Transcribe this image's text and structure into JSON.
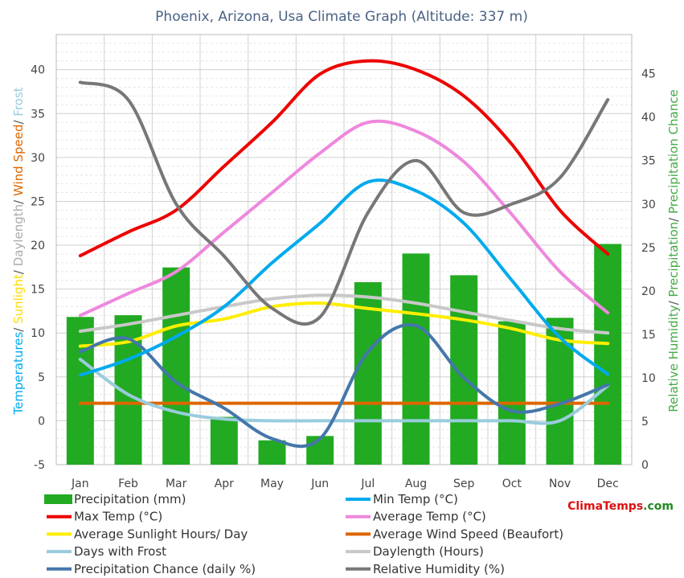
{
  "chart_data": {
    "type": "bar",
    "title": "Phoenix, Arizona, Usa Climate Graph (Altitude: 337 m)",
    "categories": [
      "Jan",
      "Feb",
      "Mar",
      "Apr",
      "May",
      "Jun",
      "Jul",
      "Aug",
      "Sep",
      "Oct",
      "Nov",
      "Dec"
    ],
    "left_axis": {
      "ylim": [
        -5,
        44
      ],
      "ticks": [
        -5,
        0,
        5,
        10,
        15,
        20,
        25,
        30,
        35,
        40
      ],
      "title_parts": [
        {
          "text": "Temperatures",
          "color": "#00aaee"
        },
        {
          "text": "/ ",
          "color": "#555555"
        },
        {
          "text": "Sunlight",
          "color": "#ffdd00"
        },
        {
          "text": "/ ",
          "color": "#555555"
        },
        {
          "text": "Daylength",
          "color": "#aaaaaa"
        },
        {
          "text": "/ ",
          "color": "#555555"
        },
        {
          "text": "Wind Speed",
          "color": "#dd6600"
        },
        {
          "text": "/ ",
          "color": "#555555"
        },
        {
          "text": "Frost",
          "color": "#99ccdd"
        }
      ]
    },
    "right_axis": {
      "ylim": [
        0,
        49.5
      ],
      "ticks": [
        0,
        5,
        10,
        15,
        20,
        25,
        30,
        35,
        40,
        45
      ],
      "title_parts": [
        {
          "text": "Relative Humidity",
          "color": "#44aa44"
        },
        {
          "text": "/ ",
          "color": "#555555"
        },
        {
          "text": "Precipitation",
          "color": "#44aa44"
        },
        {
          "text": "/ ",
          "color": "#555555"
        },
        {
          "text": "Precipitation Chance",
          "color": "#44aa44"
        }
      ]
    },
    "grid": true,
    "series": [
      {
        "name": "Precipitation (mm)",
        "kind": "bar",
        "axis": "right",
        "color": "#22aa22",
        "values": [
          17,
          17.2,
          22.7,
          5.5,
          2.8,
          3.3,
          21,
          24.3,
          21.8,
          16.5,
          16.9,
          25.4
        ]
      },
      {
        "name": "Min Temp (°C)",
        "kind": "line",
        "axis": "left",
        "color": "#00aaee",
        "values": [
          5.2,
          7,
          9.6,
          13,
          18,
          22.5,
          27.2,
          26.2,
          22.5,
          16,
          9.5,
          5.3
        ]
      },
      {
        "name": "Max Temp (°C)",
        "kind": "line",
        "axis": "left",
        "color": "#ee0000",
        "values": [
          18.8,
          21.5,
          24,
          29,
          34,
          39.5,
          41,
          40,
          37,
          31.5,
          24,
          19
        ]
      },
      {
        "name": "Average Temp (°C)",
        "kind": "line",
        "axis": "left",
        "color": "#ee88dd",
        "values": [
          12,
          14.5,
          17,
          21.5,
          26,
          30.5,
          34,
          33,
          29.5,
          23.5,
          17,
          12.3
        ]
      },
      {
        "name": "Average Sunlight Hours/ Day",
        "kind": "line",
        "axis": "left",
        "color": "#ffee00",
        "values": [
          8.5,
          9,
          10.8,
          11.6,
          13,
          13.4,
          12.8,
          12.2,
          11.5,
          10.5,
          9.2,
          8.8
        ]
      },
      {
        "name": "Average Wind Speed (Beaufort)",
        "kind": "line",
        "axis": "left",
        "color": "#dd6600",
        "values": [
          2,
          2,
          2,
          2,
          2,
          2,
          2,
          2,
          2,
          2,
          2,
          2
        ]
      },
      {
        "name": "Days with Frost",
        "kind": "line",
        "axis": "left",
        "color": "#99ccdd",
        "values": [
          7,
          3,
          1,
          0.2,
          0,
          0,
          0,
          0,
          0,
          0,
          0,
          4
        ]
      },
      {
        "name": "Daylength (Hours)",
        "kind": "line",
        "axis": "left",
        "color": "#c8c8c8",
        "values": [
          10.2,
          11,
          12,
          13,
          13.9,
          14.3,
          14.1,
          13.4,
          12.4,
          11.4,
          10.5,
          10
        ]
      },
      {
        "name": "Precipitation Chance (daily %)",
        "kind": "line",
        "axis": "right",
        "color": "#4477aa",
        "values": [
          13,
          14.5,
          9.5,
          6.5,
          3,
          3,
          13,
          16,
          10,
          6.2,
          7,
          9.2
        ]
      },
      {
        "name": "Relative Humidity (%)",
        "kind": "line",
        "axis": "right",
        "color": "#777777",
        "values": [
          44,
          42,
          30,
          24,
          18,
          17,
          29,
          35,
          29,
          30,
          33,
          42
        ]
      }
    ],
    "legend": {
      "placement": "bottom",
      "columns": 2
    }
  },
  "brand": {
    "part1": "Clima",
    "part2": "Temps",
    "part3": ".com"
  },
  "colors": {
    "brand_red": "#dd1111",
    "brand_green": "#228822",
    "title": "#4a6285"
  }
}
